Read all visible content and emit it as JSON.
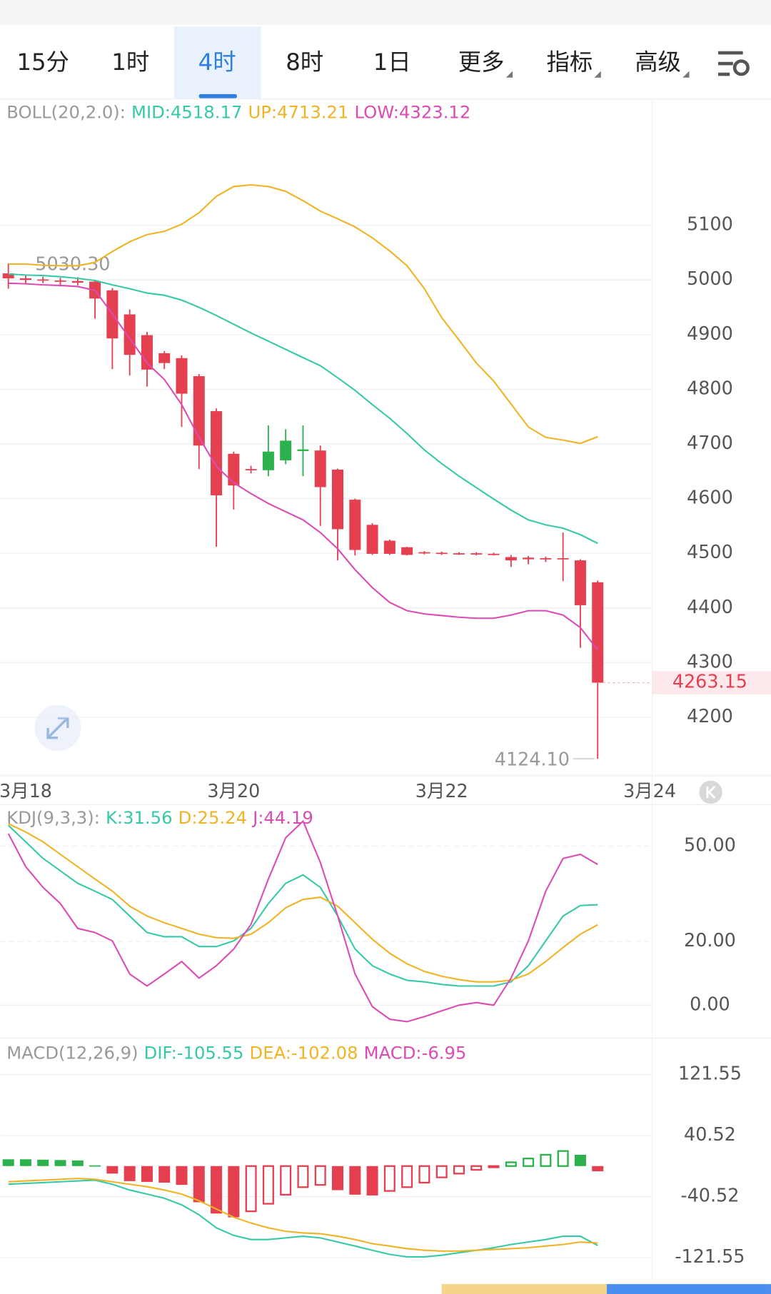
{
  "tabs": [
    "15分",
    "1时",
    "4时",
    "8时",
    "1日",
    "更多",
    "指标",
    "高级"
  ],
  "active_tab": 2,
  "chart_data": [
    {
      "type": "candlestick",
      "header": {
        "title": "BOLL(20,2.0):",
        "items": [
          "MID:4518.17",
          "UP:4713.21",
          "LOW:4323.12"
        ]
      },
      "up_color": "#2bb24c",
      "down_color": "#e5404f",
      "open": [
        5012,
        5003,
        5001,
        4999,
        4998,
        4997,
        4981,
        4937,
        4899,
        4866,
        4857,
        4824,
        4760,
        4682,
        4654,
        4652,
        4670,
        4687,
        4688,
        4653,
        4598,
        4552,
        4523,
        4511,
        4502,
        4501,
        4500,
        4500,
        4499,
        4493,
        4492,
        4491,
        4491,
        4487,
        4447
      ],
      "high": [
        5030.3,
        5008,
        5006,
        5004,
        5005,
        5000,
        4985,
        4946,
        4905,
        4870,
        4862,
        4828,
        4765,
        4686,
        4660,
        4734,
        4727,
        4734,
        4697,
        4655,
        4600,
        4555,
        4525,
        4512,
        4504,
        4503,
        4502,
        4502,
        4501,
        4497,
        4495,
        4494,
        4538,
        4489,
        4450
      ],
      "low": [
        4984,
        4992,
        4994,
        4988,
        4990,
        4929,
        4837,
        4825,
        4805,
        4837,
        4731,
        4654,
        4512,
        4580,
        4646,
        4641,
        4663,
        4641,
        4550,
        4487,
        4496,
        4497,
        4497,
        4496,
        4498,
        4497,
        4497,
        4496,
        4496,
        4475,
        4480,
        4484,
        4449,
        4327,
        4124.1
      ],
      "close": [
        5003,
        5000,
        4999,
        4997,
        4995,
        4966,
        4893,
        4863,
        4836,
        4848,
        4792,
        4697,
        4606,
        4624,
        4652,
        4686,
        4706,
        4690,
        4621,
        4544,
        4506,
        4499,
        4499,
        4497,
        4500,
        4499,
        4499,
        4498,
        4498,
        4487,
        4489,
        4489,
        4489,
        4405,
        4263.15
      ],
      "series": [
        {
          "name": "MID",
          "color": "#35c9a8",
          "values": [
            5011,
            5009,
            5008,
            5006,
            5003,
            4999,
            4991,
            4984,
            4976,
            4972,
            4963,
            4950,
            4935,
            4919,
            4903,
            4888,
            4873,
            4858,
            4843,
            4821,
            4798,
            4772,
            4747,
            4719,
            4689,
            4664,
            4641,
            4620,
            4599,
            4579,
            4561,
            4552,
            4546,
            4534,
            4518.17
          ]
        },
        {
          "name": "UP",
          "color": "#f0b323",
          "values": [
            5029,
            5029,
            5027,
            5026,
            5026,
            5032,
            5052,
            5070,
            5083,
            5089,
            5102,
            5123,
            5153,
            5171,
            5174,
            5171,
            5162,
            5145,
            5126,
            5112,
            5097,
            5077,
            5053,
            5026,
            4984,
            4931,
            4890,
            4848,
            4815,
            4773,
            4731,
            4712,
            4707,
            4701,
            4713.21
          ]
        },
        {
          "name": "LOW",
          "color": "#dc4ab4",
          "values": [
            4994,
            4993,
            4991,
            4990,
            4988,
            4981,
            4938,
            4893,
            4848,
            4818,
            4772,
            4712,
            4659,
            4629,
            4609,
            4591,
            4576,
            4561,
            4538,
            4508,
            4470,
            4437,
            4410,
            4395,
            4389,
            4386,
            4383,
            4381,
            4381,
            4387,
            4395,
            4395,
            4387,
            4364,
            4323.12
          ]
        }
      ],
      "annotations": [
        {
          "value": 5030.3,
          "label": "5030.30",
          "index": 0
        },
        {
          "value": 4124.1,
          "label": "4124.10",
          "index": 34
        }
      ],
      "xlim": [
        -0.48,
        37.14
      ],
      "xticks": [
        {
          "value": 1,
          "label": "3月18"
        },
        {
          "value": 13,
          "label": "3月20"
        },
        {
          "value": 25,
          "label": "3月22"
        },
        {
          "value": 37,
          "label": "3月24"
        }
      ],
      "ylim": [
        4093,
        5331
      ],
      "yticks": [
        4200,
        4300,
        4400,
        4500,
        4600,
        4700,
        4800,
        4900,
        5000,
        5100
      ],
      "grid": true
    },
    {
      "type": "line",
      "header": {
        "title": "KDJ(9,3,3):",
        "items": [
          "K:31.56",
          "D:25.24",
          "J:44.19"
        ]
      },
      "series": [
        {
          "name": "K",
          "color": "#35c9a8",
          "values": [
            56.5,
            51.3,
            46.1,
            42.2,
            38.3,
            35.8,
            33.2,
            28.0,
            22.8,
            21.5,
            21.5,
            18.4,
            18.4,
            20.2,
            24.1,
            31.9,
            38.3,
            40.9,
            37.0,
            28.0,
            17.6,
            12.4,
            9.8,
            7.8,
            7.3,
            6.5,
            6.0,
            6.0,
            6.0,
            7.3,
            12.4,
            20.2,
            28.0,
            31.3,
            31.56
          ]
        },
        {
          "name": "D",
          "color": "#f0b323",
          "values": [
            57.0,
            54.4,
            51.3,
            47.4,
            43.5,
            39.6,
            35.8,
            31.1,
            28.0,
            25.9,
            24.1,
            22.3,
            21.2,
            21.0,
            22.3,
            25.9,
            30.6,
            33.2,
            33.9,
            31.1,
            25.9,
            20.7,
            16.3,
            13.0,
            10.6,
            9.1,
            8.0,
            7.3,
            7.3,
            7.8,
            9.8,
            13.7,
            18.1,
            22.3,
            25.24
          ]
        },
        {
          "name": "J",
          "color": "#dc4ab4",
          "values": [
            53.9,
            43.5,
            37.0,
            31.9,
            24.1,
            22.8,
            20.2,
            9.8,
            6.0,
            9.8,
            13.7,
            8.5,
            12.4,
            17.6,
            25.4,
            39.6,
            52.6,
            57.8,
            44.8,
            28.0,
            9.8,
            -0.5,
            -4.4,
            -5.2,
            -3.6,
            -1.8,
            0,
            0.8,
            0,
            8.5,
            20.2,
            35.8,
            46.1,
            47.4,
            44.19
          ]
        }
      ],
      "xlim": [
        -0.48,
        37.14
      ],
      "ylim": [
        -8.3,
        61.7
      ],
      "yticks": [
        {
          "value": 0,
          "label": "0.00"
        },
        {
          "value": 20,
          "label": "20.00"
        },
        {
          "value": 50,
          "label": "50.00"
        }
      ],
      "grid": true
    },
    {
      "type": "bar",
      "header": {
        "title": "MACD(12,26,9)",
        "items": [
          "DIF:-105.55",
          "DEA:-102.08",
          "MACD:-6.95"
        ]
      },
      "up_color": "#2bb24c",
      "down_color": "#e5404f",
      "values": [
        9,
        9,
        8.5,
        8,
        7.5,
        1,
        -10,
        -20,
        -21,
        -22,
        -25,
        -48,
        -63,
        -68,
        -60,
        -50,
        -38,
        -28,
        -25,
        -32,
        -38,
        -39,
        -33,
        -28,
        -22,
        -15,
        -10,
        -5,
        -1,
        5,
        10,
        15,
        20,
        15,
        -6.95
      ],
      "series": [
        {
          "name": "DIF",
          "color": "#35c9a8",
          "values": [
            -24.1,
            -23.0,
            -21.9,
            -20.8,
            -19.7,
            -18.6,
            -24.1,
            -31.8,
            -37.2,
            -42.7,
            -51.5,
            -64.6,
            -82.1,
            -92.0,
            -97.5,
            -97.5,
            -95.3,
            -93.1,
            -95.3,
            -100.8,
            -106.2,
            -111.7,
            -117.2,
            -120.5,
            -120.5,
            -118.3,
            -115.0,
            -111.7,
            -108.4,
            -104.1,
            -100.8,
            -97.5,
            -93.1,
            -93.1,
            -105.55
          ]
        },
        {
          "name": "DEA",
          "color": "#f0b323",
          "values": [
            -20.8,
            -19.7,
            -18.6,
            -17.5,
            -16.4,
            -17.5,
            -20.8,
            -24.1,
            -27.4,
            -31.8,
            -37.2,
            -46.0,
            -57.0,
            -67.9,
            -75.6,
            -82.1,
            -86.5,
            -88.7,
            -89.8,
            -93.1,
            -97.5,
            -103.0,
            -106.2,
            -109.5,
            -111.7,
            -112.8,
            -112.8,
            -111.7,
            -110.6,
            -109.5,
            -108.4,
            -106.2,
            -104.1,
            -100.8,
            -102.08
          ]
        }
      ],
      "xlim": [
        -0.48,
        37.14
      ],
      "ylim": [
        -144.6,
        134.7
      ],
      "yticks": [
        -121.55,
        -40.52,
        40.52,
        121.55
      ],
      "grid": true
    }
  ]
}
